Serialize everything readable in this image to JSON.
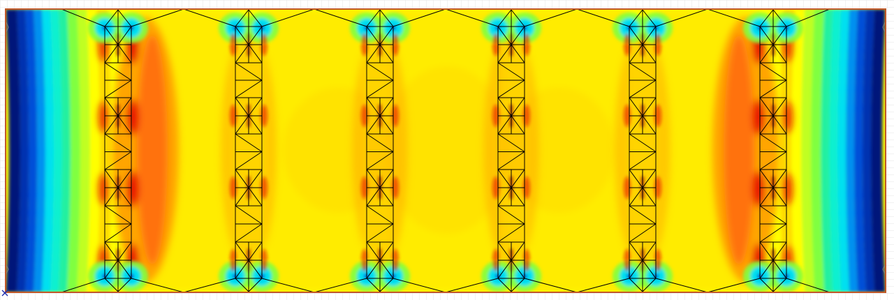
{
  "canvas": {
    "background": "#ffffff",
    "grid_color": "#e4e4e4"
  },
  "palette": {
    "deep_blue": "#00147a",
    "blue": "#0050d8",
    "cyan": "#00e0f0",
    "aqua_green": "#20f0a0",
    "green": "#80ff40",
    "yellow": "#ffff00",
    "gold": "#ffdc00",
    "orange": "#ffa000",
    "dark_orange": "#ff7010",
    "red": "#e81000",
    "frame_edge": "#c05828",
    "mesh_line": "#000000",
    "origin_marker": "#2030b0"
  },
  "model": {
    "truss_count": 6,
    "panels_per_truss": 4
  },
  "legend_icon": "axis-cross-icon"
}
